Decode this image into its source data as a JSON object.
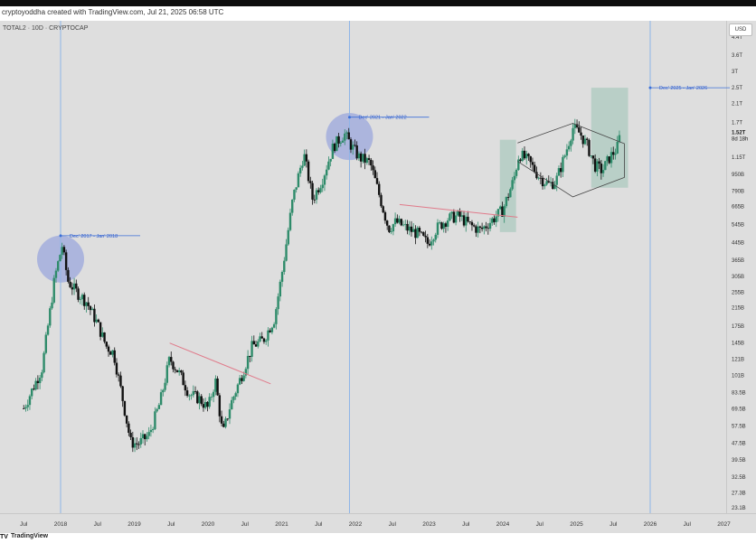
{
  "header": {
    "text": "cryptoyoddha created with TradingView.com,  Jul 21, 2025 06:58 UTC"
  },
  "symbol": {
    "label": "TOTAL2 · 10D · CRYPTOCAP"
  },
  "currency": "USD",
  "footer": {
    "logo": "TV",
    "brand": "TradingView"
  },
  "chart_data": {
    "type": "candlestick",
    "scale": "log",
    "price_ticks": [
      "4.4T",
      "3.6T",
      "3T",
      "2.5T",
      "2.1T",
      "1.7T",
      "1.15T",
      "950B",
      "790B",
      "665B",
      "545B",
      "445B",
      "365B",
      "305B",
      "255B",
      "215B",
      "175B",
      "145B",
      "121B",
      "101B",
      "83.5B",
      "69.5B",
      "57.5B",
      "47.5B",
      "39.5B",
      "32.5B",
      "27.3B",
      "23.1B"
    ],
    "price_tick_values": [
      4400,
      3600,
      3000,
      2500,
      2100,
      1700,
      1150,
      950,
      790,
      665,
      545,
      445,
      365,
      305,
      255,
      215,
      175,
      145,
      121,
      101,
      83.5,
      69.5,
      57.5,
      47.5,
      39.5,
      32.5,
      27.3,
      23.1
    ],
    "last_price": {
      "label": "1.52T",
      "value": 1520,
      "countdown": "8d 18h"
    },
    "time_ticks": [
      {
        "label": "Jul",
        "t": 2017.5
      },
      {
        "label": "2018",
        "t": 2018.0
      },
      {
        "label": "Jul",
        "t": 2018.5
      },
      {
        "label": "2019",
        "t": 2019.0
      },
      {
        "label": "Jul",
        "t": 2019.5
      },
      {
        "label": "2020",
        "t": 2020.0
      },
      {
        "label": "Jul",
        "t": 2020.5
      },
      {
        "label": "2021",
        "t": 2021.0
      },
      {
        "label": "Jul",
        "t": 2021.5
      },
      {
        "label": "2022",
        "t": 2022.0
      },
      {
        "label": "Jul",
        "t": 2022.5
      },
      {
        "label": "2023",
        "t": 2023.0
      },
      {
        "label": "Jul",
        "t": 2023.5
      },
      {
        "label": "2024",
        "t": 2024.0
      },
      {
        "label": "Jul",
        "t": 2024.5
      },
      {
        "label": "2025",
        "t": 2025.0
      },
      {
        "label": "Jul",
        "t": 2025.5
      },
      {
        "label": "2026",
        "t": 2026.0
      },
      {
        "label": "Jul",
        "t": 2026.5
      },
      {
        "label": "2027",
        "t": 2027.0
      }
    ],
    "series": [
      {
        "t": 2017.5,
        "v": 70
      },
      {
        "t": 2017.75,
        "v": 110
      },
      {
        "t": 2017.92,
        "v": 300
      },
      {
        "t": 2018.02,
        "v": 430
      },
      {
        "t": 2018.1,
        "v": 290
      },
      {
        "t": 2018.2,
        "v": 260
      },
      {
        "t": 2018.35,
        "v": 230
      },
      {
        "t": 2018.5,
        "v": 180
      },
      {
        "t": 2018.62,
        "v": 140
      },
      {
        "t": 2018.72,
        "v": 130
      },
      {
        "t": 2018.85,
        "v": 75
      },
      {
        "t": 2018.95,
        "v": 48
      },
      {
        "t": 2019.05,
        "v": 47
      },
      {
        "t": 2019.2,
        "v": 52
      },
      {
        "t": 2019.35,
        "v": 75
      },
      {
        "t": 2019.48,
        "v": 122
      },
      {
        "t": 2019.6,
        "v": 105
      },
      {
        "t": 2019.75,
        "v": 82
      },
      {
        "t": 2019.88,
        "v": 78
      },
      {
        "t": 2020.0,
        "v": 70
      },
      {
        "t": 2020.1,
        "v": 96
      },
      {
        "t": 2020.2,
        "v": 52
      },
      {
        "t": 2020.3,
        "v": 72
      },
      {
        "t": 2020.45,
        "v": 100
      },
      {
        "t": 2020.6,
        "v": 140
      },
      {
        "t": 2020.75,
        "v": 150
      },
      {
        "t": 2020.9,
        "v": 190
      },
      {
        "t": 2021.0,
        "v": 310
      },
      {
        "t": 2021.15,
        "v": 720
      },
      {
        "t": 2021.3,
        "v": 1200
      },
      {
        "t": 2021.42,
        "v": 720
      },
      {
        "t": 2021.55,
        "v": 900
      },
      {
        "t": 2021.7,
        "v": 1300
      },
      {
        "t": 2021.85,
        "v": 1500
      },
      {
        "t": 2021.95,
        "v": 1300
      },
      {
        "t": 2022.05,
        "v": 1150
      },
      {
        "t": 2022.2,
        "v": 1080
      },
      {
        "t": 2022.35,
        "v": 700
      },
      {
        "t": 2022.45,
        "v": 520
      },
      {
        "t": 2022.55,
        "v": 560
      },
      {
        "t": 2022.7,
        "v": 520
      },
      {
        "t": 2022.85,
        "v": 490
      },
      {
        "t": 2022.98,
        "v": 440
      },
      {
        "t": 2023.1,
        "v": 520
      },
      {
        "t": 2023.25,
        "v": 580
      },
      {
        "t": 2023.4,
        "v": 600
      },
      {
        "t": 2023.55,
        "v": 540
      },
      {
        "t": 2023.7,
        "v": 510
      },
      {
        "t": 2023.85,
        "v": 570
      },
      {
        "t": 2024.0,
        "v": 640
      },
      {
        "t": 2024.15,
        "v": 900
      },
      {
        "t": 2024.22,
        "v": 1200
      },
      {
        "t": 2024.35,
        "v": 1100
      },
      {
        "t": 2024.5,
        "v": 920
      },
      {
        "t": 2024.62,
        "v": 850
      },
      {
        "t": 2024.72,
        "v": 880
      },
      {
        "t": 2024.85,
        "v": 1200
      },
      {
        "t": 2024.95,
        "v": 1600
      },
      {
        "t": 2025.05,
        "v": 1500
      },
      {
        "t": 2025.15,
        "v": 1300
      },
      {
        "t": 2025.25,
        "v": 1050
      },
      {
        "t": 2025.35,
        "v": 990
      },
      {
        "t": 2025.45,
        "v": 1150
      },
      {
        "t": 2025.55,
        "v": 1270
      },
      {
        "t": 2025.6,
        "v": 1520
      }
    ],
    "cycle_markers": [
      {
        "label": "Dec' 2017 - Jan' 2018",
        "t": 2018.0,
        "label_v": 480
      },
      {
        "label": "Dec' 2021 - Jan' 2022",
        "t": 2021.92,
        "label_v": 1800
      },
      {
        "label": "Dec' 2025 - Jan' 2026",
        "t": 2026.0,
        "label_v": 2500
      }
    ]
  }
}
